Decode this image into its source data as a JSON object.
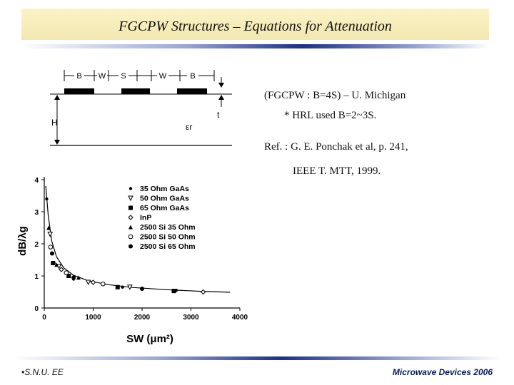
{
  "slide": {
    "title": "FGCPW Structures – Equations for Attenuation",
    "notes": [
      "(FGCPW : B=4S) – U. Michigan",
      "* HRL used B=2~3S.",
      "Ref. : G. E. Ponchak et al, p. 241,",
      "IEEE T. MTT, 1999."
    ],
    "footer_left": "S.N.U. EE",
    "footer_bullet": "•",
    "footer_right": "Microwave Devices 2006"
  },
  "diagram": {
    "segment_labels": [
      "B",
      "W",
      "S",
      "W",
      "B"
    ],
    "height_label": "H",
    "thickness_label": "t",
    "permittivity_label": "εr"
  },
  "chart_data": {
    "type": "scatter",
    "xlabel": "SW (μm²)",
    "ylabel": "dB/λg",
    "xlim": [
      0,
      4000
    ],
    "ylim": [
      0,
      4
    ],
    "xticks": [
      0,
      1000,
      2000,
      3000,
      4000
    ],
    "yticks": [
      0,
      1,
      2,
      3,
      4
    ],
    "legend_position": "top-right",
    "series": [
      {
        "name": "35 Ohm GaAs",
        "marker": "dot",
        "points": [
          [
            50,
            3.4
          ],
          [
            200,
            1.4
          ],
          [
            600,
            0.9
          ],
          [
            1600,
            0.65
          ],
          [
            2700,
            0.55
          ]
        ]
      },
      {
        "name": "50 Ohm GaAs",
        "marker": "tri-down",
        "points": [
          [
            120,
            2.3
          ],
          [
            300,
            1.3
          ],
          [
            900,
            0.8
          ],
          [
            1750,
            0.65
          ]
        ]
      },
      {
        "name": "65 Ohm GaAs",
        "marker": "square",
        "points": [
          [
            180,
            1.4
          ],
          [
            500,
            1.0
          ],
          [
            1500,
            0.65
          ],
          [
            2650,
            0.53
          ]
        ]
      },
      {
        "name": "InP",
        "marker": "diamond",
        "points": [
          [
            350,
            1.2
          ],
          [
            1000,
            0.8
          ],
          [
            3250,
            0.5
          ]
        ]
      },
      {
        "name": "2500 Si 35 Ohm",
        "marker": "tri-up",
        "points": [
          [
            90,
            2.5
          ],
          [
            250,
            1.35
          ],
          [
            700,
            0.95
          ]
        ]
      },
      {
        "name": "2500 Si 50 Ohm",
        "marker": "circle-open",
        "points": [
          [
            130,
            1.9
          ],
          [
            450,
            1.1
          ],
          [
            1200,
            0.75
          ]
        ]
      },
      {
        "name": "2500 Si 65 Ohm",
        "marker": "circle-filled",
        "points": [
          [
            160,
            1.7
          ],
          [
            600,
            0.95
          ],
          [
            2000,
            0.6
          ]
        ]
      }
    ],
    "fit_curve": [
      [
        30,
        3.8
      ],
      [
        80,
        2.9
      ],
      [
        150,
        2.1
      ],
      [
        250,
        1.6
      ],
      [
        400,
        1.25
      ],
      [
        600,
        1.02
      ],
      [
        900,
        0.85
      ],
      [
        1300,
        0.73
      ],
      [
        1800,
        0.64
      ],
      [
        2500,
        0.57
      ],
      [
        3200,
        0.52
      ],
      [
        3800,
        0.49
      ]
    ]
  }
}
